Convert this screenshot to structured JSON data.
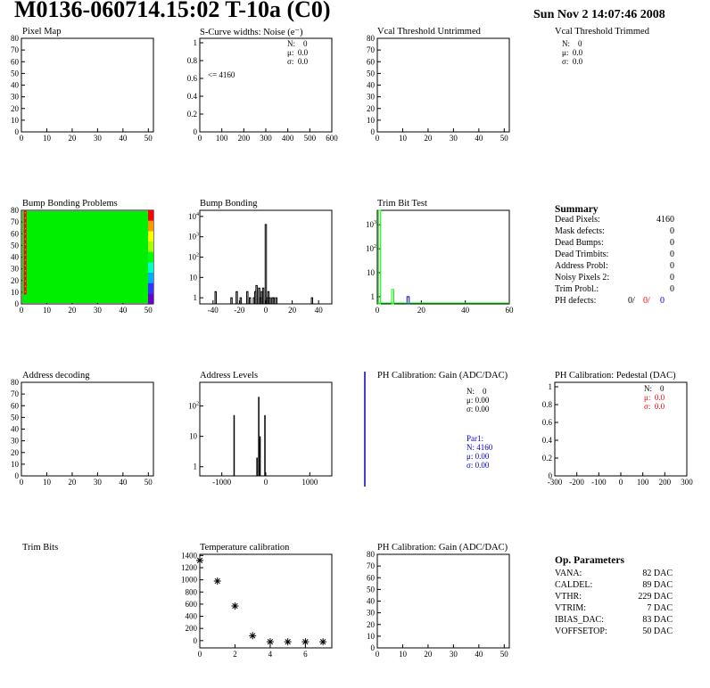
{
  "header": {
    "title": "M0136-060714.15:02 T-10a (C0)",
    "date": "Sun Nov  2 14:07:46 2008"
  },
  "panels": {
    "pixel_map": {
      "title": "Pixel Map"
    },
    "scurve": {
      "title": "S-Curve widths: Noise (e⁻)",
      "stats": [
        [
          "N:",
          "0"
        ],
        [
          "μ:",
          "0.0"
        ],
        [
          "σ:",
          "0.0"
        ]
      ],
      "annotation": "<= 4160"
    },
    "vcal_untrimmed": {
      "title": "Vcal Threshold Untrimmed"
    },
    "vcal_trimmed": {
      "title": "Vcal Threshold Trimmed",
      "stats": [
        [
          "N:",
          "0"
        ],
        [
          "μ:",
          "0.0"
        ],
        [
          "σ:",
          "0.0"
        ]
      ]
    },
    "bump_map": {
      "title": "Bump Bonding Problems"
    },
    "bump_hist": {
      "title": "Bump Bonding"
    },
    "trim_bit_test": {
      "title": "Trim Bit Test"
    },
    "address_decoding": {
      "title": "Address decoding"
    },
    "address_levels": {
      "title": "Address Levels"
    },
    "ph_gain": {
      "title": "PH Calibration: Gain (ADC/DAC)",
      "stats": [
        [
          "N:",
          "0"
        ],
        [
          "μ:",
          "0.00"
        ],
        [
          "σ:",
          "0.00"
        ]
      ],
      "par1_title": "Par1:",
      "par1": [
        [
          "N:",
          "4160"
        ],
        [
          "μ:",
          "0.00"
        ],
        [
          "σ:",
          "0.00"
        ]
      ]
    },
    "ph_pedestal": {
      "title": "PH Calibration: Pedestal (DAC)",
      "stats": [
        [
          "N:",
          "0"
        ],
        [
          "μ:",
          "0.0"
        ],
        [
          "σ:",
          "0.0"
        ]
      ]
    },
    "trim_bits": {
      "title": "Trim Bits"
    },
    "temperature": {
      "title": "Temperature calibration"
    },
    "ph_gain2": {
      "title": "PH Calibration: Gain (ADC/DAC)"
    }
  },
  "summary": {
    "title": "Summary",
    "rows": [
      {
        "label": "Dead Pixels:",
        "value": "4160"
      },
      {
        "label": "Mask defects:",
        "value": "0"
      },
      {
        "label": "Dead Bumps:",
        "value": "0"
      },
      {
        "label": "Dead Trimbits:",
        "value": "0"
      },
      {
        "label": "Address Probl:",
        "value": "0"
      },
      {
        "label": "Noisy Pixels 2:",
        "value": "0"
      },
      {
        "label": "Trim Probl.:",
        "value": "0"
      }
    ],
    "ph_defects": {
      "label": "PH defects:",
      "v1": "0/",
      "v2": "0/",
      "v3": "0"
    }
  },
  "op_params": {
    "title": "Op. Parameters",
    "rows": [
      {
        "label": "VANA:",
        "value": "82 DAC"
      },
      {
        "label": "CALDEL:",
        "value": "89 DAC"
      },
      {
        "label": "VTHR:",
        "value": "229 DAC"
      },
      {
        "label": "VTRIM:",
        "value": "7 DAC"
      },
      {
        "label": "IBIAS_DAC:",
        "value": "83 DAC"
      },
      {
        "label": "VOFFSETOP:",
        "value": "50 DAC"
      }
    ]
  },
  "colors": {
    "red": "#ff0000",
    "blue": "#0000cc",
    "green": "#00ff00",
    "map_green": "#00ee00"
  },
  "chart_data": [
    {
      "id": "pixel_map",
      "type": "heatmap",
      "title": "Pixel Map",
      "xlim": [
        0,
        52
      ],
      "ylim": [
        0,
        80
      ],
      "xticks": [
        0,
        10,
        20,
        30,
        40,
        50
      ],
      "yticks": [
        0,
        10,
        20,
        30,
        40,
        50,
        60,
        70,
        80
      ],
      "values": []
    },
    {
      "id": "scurve",
      "type": "bar",
      "title": "S-Curve widths: Noise (e⁻)",
      "xlim": [
        0,
        600
      ],
      "ylim": [
        0,
        1.05
      ],
      "xticks": [
        0,
        100,
        200,
        300,
        400,
        500,
        600
      ],
      "yticks": [
        0,
        0.2,
        0.4,
        0.6,
        0.8,
        1
      ],
      "values": []
    },
    {
      "id": "vcal_untrimmed",
      "type": "bar",
      "title": "Vcal Threshold Untrimmed",
      "xlim": [
        0,
        52
      ],
      "ylim": [
        0,
        80
      ],
      "xticks": [
        0,
        10,
        20,
        30,
        40,
        50
      ],
      "yticks": [
        0,
        10,
        20,
        30,
        40,
        50,
        60,
        70,
        80
      ],
      "values": []
    },
    {
      "id": "bump_map",
      "type": "heatmap",
      "title": "Bump Bonding Problems",
      "xlim": [
        0,
        52
      ],
      "ylim": [
        0,
        80
      ],
      "xticks": [
        0,
        10,
        20,
        30,
        40,
        50
      ],
      "yticks": [
        0,
        10,
        20,
        30,
        40,
        50,
        60,
        70,
        80
      ],
      "description_values": {
        "fill": "uniform",
        "red_column": {
          "x": [
            1,
            2
          ],
          "y": [
            8,
            80
          ]
        }
      }
    },
    {
      "id": "bump_hist",
      "type": "bar",
      "title": "Bump Bonding",
      "xlim": [
        -50,
        50
      ],
      "log_y": true,
      "ylim": [
        0.5,
        20000
      ],
      "xticks": [
        -40,
        -20,
        0,
        20,
        40
      ],
      "yticks": [
        1,
        10,
        100,
        1000,
        10000
      ],
      "x": [
        -38,
        -26,
        -22,
        -19,
        -14,
        -12,
        -9,
        -8,
        -7,
        -5,
        -4,
        -3,
        -2,
        0,
        1,
        2,
        3,
        5,
        6,
        8,
        35
      ],
      "y": [
        2,
        1,
        2,
        1,
        2,
        1,
        1,
        2,
        4,
        3,
        1,
        2,
        3,
        4000,
        1,
        2,
        1,
        1,
        1,
        1,
        1
      ]
    },
    {
      "id": "trim_bit_test",
      "type": "bar",
      "title": "Trim Bit Test",
      "xlim": [
        0,
        60
      ],
      "log_y": true,
      "ylim": [
        0.5,
        4000
      ],
      "xticks": [
        0,
        20,
        40,
        60
      ],
      "yticks": [
        1,
        10,
        100,
        1000
      ],
      "series": [
        {
          "color": "green",
          "x": [
            1,
            7
          ],
          "y": [
            4000,
            2
          ]
        },
        {
          "color": "blue",
          "x": [
            14
          ],
          "y": [
            1
          ]
        }
      ]
    },
    {
      "id": "address_decoding",
      "type": "heatmap",
      "title": "Address decoding",
      "xlim": [
        0,
        52
      ],
      "ylim": [
        0,
        80
      ],
      "xticks": [
        0,
        10,
        20,
        30,
        40,
        50
      ],
      "yticks": [
        0,
        10,
        20,
        30,
        40,
        50,
        60,
        70,
        80
      ],
      "values": []
    },
    {
      "id": "address_levels",
      "type": "bar",
      "title": "Address Levels",
      "xlim": [
        -1500,
        1500
      ],
      "log_y": true,
      "ylim": [
        0.5,
        600
      ],
      "xticks": [
        -1000,
        0,
        1000
      ],
      "yticks": [
        1,
        10,
        100
      ],
      "x": [
        -720,
        -200,
        -160,
        -130,
        -20
      ],
      "y": [
        50,
        2,
        200,
        10,
        50
      ]
    },
    {
      "id": "ph_pedestal",
      "type": "bar",
      "title": "PH Calibration: Pedestal (DAC)",
      "xlim": [
        -300,
        300
      ],
      "ylim": [
        0,
        1.05
      ],
      "xticks": [
        -300,
        -200,
        -100,
        0,
        100,
        200,
        300
      ],
      "yticks": [
        0,
        0.2,
        0.4,
        0.6,
        0.8,
        1
      ],
      "values": []
    },
    {
      "id": "temperature",
      "type": "scatter",
      "title": "Temperature calibration",
      "xlim": [
        0,
        7.5
      ],
      "ylim": [
        -120,
        1420
      ],
      "xticks": [
        0,
        2,
        4,
        6
      ],
      "yticks": [
        0,
        200,
        400,
        600,
        800,
        1000,
        1200,
        1400
      ],
      "x": [
        0,
        1,
        2,
        3,
        4,
        5,
        6,
        7
      ],
      "y": [
        1320,
        980,
        570,
        80,
        -20,
        -20,
        -20,
        -20
      ]
    },
    {
      "id": "ph_gain2",
      "type": "bar",
      "title": "PH Calibration: Gain (ADC/DAC)",
      "xlim": [
        0,
        52
      ],
      "ylim": [
        0,
        80
      ],
      "xticks": [
        0,
        10,
        20,
        30,
        40,
        50
      ],
      "yticks": [
        0,
        10,
        20,
        30,
        40,
        50,
        60,
        70,
        80
      ],
      "values": []
    }
  ]
}
